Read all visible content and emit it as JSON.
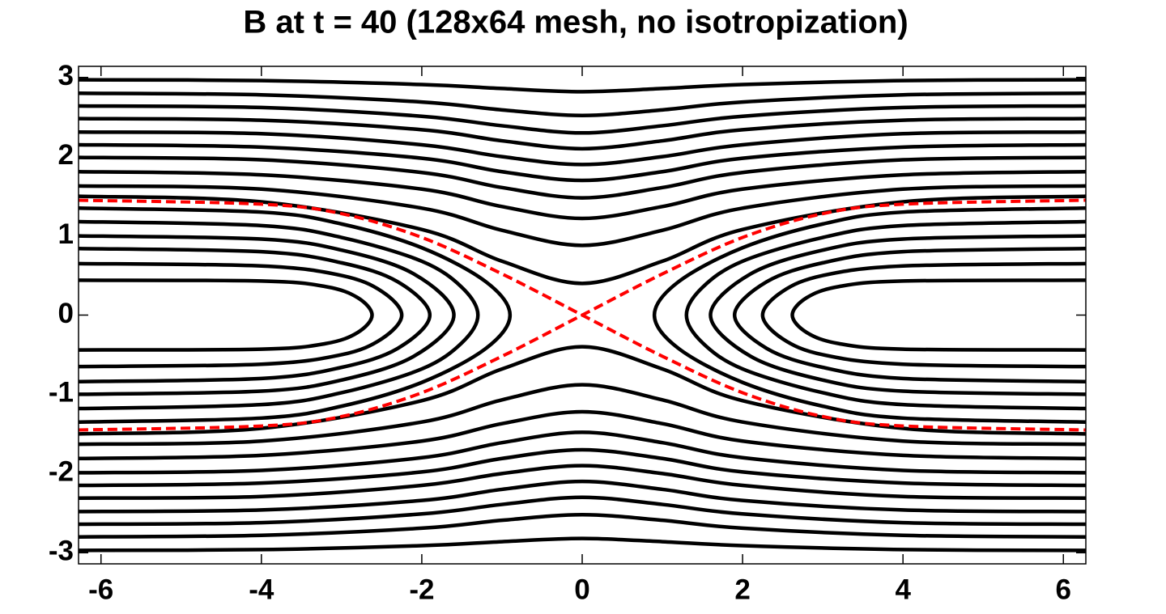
{
  "chart_data": {
    "type": "line",
    "title": "B at t = 40 (128x64 mesh, no isotropization)",
    "xlim": [
      -6.28,
      6.28
    ],
    "ylim": [
      -3.14,
      3.14
    ],
    "xticks": [
      -6,
      -4,
      -2,
      0,
      2,
      4,
      6
    ],
    "yticks": [
      -3,
      -2,
      -1,
      0,
      1,
      2,
      3
    ],
    "series": [
      {
        "color": "#000000",
        "x": [
          -6.28,
          -4,
          -3.2,
          -2.8,
          -2.62,
          -2.8,
          -3.2,
          -4,
          -6.28
        ],
        "values": [
          0.44,
          0.43,
          0.36,
          0.22,
          0,
          -0.22,
          -0.36,
          -0.43,
          -0.44
        ]
      },
      {
        "color": "#000000",
        "x": [
          -6.28,
          -4,
          -3,
          -2.5,
          -2.25,
          -2.5,
          -3,
          -4,
          -6.28
        ],
        "values": [
          0.65,
          0.62,
          0.5,
          0.3,
          0,
          -0.3,
          -0.5,
          -0.62,
          -0.65
        ]
      },
      {
        "color": "#000000",
        "x": [
          -6.28,
          -4,
          -3,
          -2.3,
          -1.9,
          -2.3,
          -3,
          -4,
          -6.28
        ],
        "values": [
          0.84,
          0.8,
          0.66,
          0.42,
          0,
          -0.42,
          -0.66,
          -0.8,
          -0.84
        ]
      },
      {
        "color": "#000000",
        "x": [
          -6.28,
          -4,
          -3,
          -2.1,
          -1.6,
          -2.1,
          -3,
          -4,
          -6.28
        ],
        "values": [
          1.0,
          0.96,
          0.82,
          0.52,
          0,
          -0.52,
          -0.82,
          -0.96,
          -1.0
        ]
      },
      {
        "color": "#000000",
        "x": [
          -6.28,
          -4,
          -3,
          -2,
          -1.5,
          -1.3,
          -1.5,
          -2,
          -3,
          -4,
          -6.28
        ],
        "values": [
          1.18,
          1.13,
          0.98,
          0.68,
          0.35,
          0,
          -0.35,
          -0.68,
          -0.98,
          -1.13,
          -1.18
        ]
      },
      {
        "color": "#000000",
        "x": [
          -6.28,
          -4,
          -3,
          -2,
          -1.2,
          -0.9,
          -1.2,
          -2,
          -3,
          -4,
          -6.28
        ],
        "values": [
          1.35,
          1.3,
          1.15,
          0.85,
          0.42,
          0,
          -0.42,
          -0.85,
          -1.15,
          -1.3,
          -1.35
        ]
      },
      {
        "color": "#000000",
        "x": [
          6.28,
          4,
          3.2,
          2.8,
          2.62,
          2.8,
          3.2,
          4,
          6.28
        ],
        "values": [
          0.44,
          0.43,
          0.36,
          0.22,
          0,
          -0.22,
          -0.36,
          -0.43,
          -0.44
        ]
      },
      {
        "color": "#000000",
        "x": [
          6.28,
          4,
          3,
          2.5,
          2.25,
          2.5,
          3,
          4,
          6.28
        ],
        "values": [
          0.65,
          0.62,
          0.5,
          0.3,
          0,
          -0.3,
          -0.5,
          -0.62,
          -0.65
        ]
      },
      {
        "color": "#000000",
        "x": [
          6.28,
          4,
          3,
          2.3,
          1.9,
          2.3,
          3,
          4,
          6.28
        ],
        "values": [
          0.84,
          0.8,
          0.66,
          0.42,
          0,
          -0.42,
          -0.66,
          -0.8,
          -0.84
        ]
      },
      {
        "color": "#000000",
        "x": [
          6.28,
          4,
          3,
          2.1,
          1.6,
          2.1,
          3,
          4,
          6.28
        ],
        "values": [
          1.0,
          0.96,
          0.82,
          0.52,
          0,
          -0.52,
          -0.82,
          -0.96,
          -1.0
        ]
      },
      {
        "color": "#000000",
        "x": [
          6.28,
          4,
          3,
          2,
          1.5,
          1.3,
          1.5,
          2,
          3,
          4,
          6.28
        ],
        "values": [
          1.18,
          1.13,
          0.98,
          0.68,
          0.35,
          0,
          -0.35,
          -0.68,
          -0.98,
          -1.13,
          -1.18
        ]
      },
      {
        "color": "#000000",
        "x": [
          6.28,
          4,
          3,
          2,
          1.2,
          0.9,
          1.2,
          2,
          3,
          4,
          6.28
        ],
        "values": [
          1.35,
          1.3,
          1.15,
          0.85,
          0.42,
          0,
          -0.42,
          -0.85,
          -1.15,
          -1.3,
          -1.35
        ]
      },
      {
        "color": "#000000",
        "x": [
          -6.28,
          -4,
          -2,
          -1,
          0,
          1,
          2,
          4,
          6.28
        ],
        "values": [
          1.5,
          1.43,
          1.08,
          0.68,
          0.4,
          0.68,
          1.08,
          1.43,
          1.5
        ]
      },
      {
        "color": "#000000",
        "x": [
          -6.28,
          -4,
          -2,
          -1,
          0,
          1,
          2,
          4,
          6.28
        ],
        "values": [
          1.63,
          1.59,
          1.35,
          1.07,
          0.88,
          1.07,
          1.35,
          1.59,
          1.63
        ]
      },
      {
        "color": "#000000",
        "x": [
          -6.28,
          -4,
          -2,
          -1,
          0,
          1,
          2,
          4,
          6.28
        ],
        "values": [
          1.81,
          1.77,
          1.59,
          1.37,
          1.22,
          1.37,
          1.59,
          1.77,
          1.81
        ]
      },
      {
        "color": "#000000",
        "x": [
          -6.28,
          -4,
          -2,
          -1,
          0,
          1,
          2,
          4,
          6.28
        ],
        "values": [
          1.99,
          1.96,
          1.8,
          1.61,
          1.48,
          1.61,
          1.8,
          1.96,
          1.99
        ]
      },
      {
        "color": "#000000",
        "x": [
          -6.28,
          -4,
          -2,
          -1,
          0,
          1,
          2,
          4,
          6.28
        ],
        "values": [
          2.15,
          2.12,
          1.98,
          1.81,
          1.7,
          1.81,
          1.98,
          2.12,
          2.15
        ]
      },
      {
        "color": "#000000",
        "x": [
          -6.28,
          -4,
          -2,
          -1,
          0,
          1,
          2,
          4,
          6.28
        ],
        "values": [
          2.31,
          2.29,
          2.15,
          2.0,
          1.9,
          2.0,
          2.15,
          2.29,
          2.31
        ]
      },
      {
        "color": "#000000",
        "x": [
          -6.28,
          -4,
          -2,
          -1,
          0,
          1,
          2,
          4,
          6.28
        ],
        "values": [
          2.48,
          2.46,
          2.34,
          2.2,
          2.1,
          2.2,
          2.34,
          2.46,
          2.48
        ]
      },
      {
        "color": "#000000",
        "x": [
          -6.28,
          -4,
          -2,
          -1,
          0,
          1,
          2,
          4,
          6.28
        ],
        "values": [
          2.64,
          2.62,
          2.51,
          2.39,
          2.3,
          2.39,
          2.51,
          2.62,
          2.64
        ]
      },
      {
        "color": "#000000",
        "x": [
          -6.28,
          -4,
          -2,
          -1,
          0,
          1,
          2,
          4,
          6.28
        ],
        "values": [
          2.8,
          2.78,
          2.69,
          2.59,
          2.52,
          2.59,
          2.69,
          2.78,
          2.8
        ]
      },
      {
        "color": "#000000",
        "x": [
          -6.28,
          -4,
          -2,
          -1,
          0,
          1,
          2,
          4,
          6.28
        ],
        "values": [
          2.97,
          2.96,
          2.91,
          2.86,
          2.82,
          2.86,
          2.91,
          2.96,
          2.97
        ]
      },
      {
        "color": "#000000",
        "x": [
          -6.28,
          -4,
          -2,
          -1,
          0,
          1,
          2,
          4,
          6.28
        ],
        "values": [
          -1.5,
          -1.43,
          -1.08,
          -0.68,
          -0.4,
          -0.68,
          -1.08,
          -1.43,
          -1.5
        ]
      },
      {
        "color": "#000000",
        "x": [
          -6.28,
          -4,
          -2,
          -1,
          0,
          1,
          2,
          4,
          6.28
        ],
        "values": [
          -1.63,
          -1.59,
          -1.35,
          -1.07,
          -0.88,
          -1.07,
          -1.35,
          -1.59,
          -1.63
        ]
      },
      {
        "color": "#000000",
        "x": [
          -6.28,
          -4,
          -2,
          -1,
          0,
          1,
          2,
          4,
          6.28
        ],
        "values": [
          -1.81,
          -1.77,
          -1.59,
          -1.37,
          -1.22,
          -1.37,
          -1.59,
          -1.77,
          -1.81
        ]
      },
      {
        "color": "#000000",
        "x": [
          -6.28,
          -4,
          -2,
          -1,
          0,
          1,
          2,
          4,
          6.28
        ],
        "values": [
          -1.99,
          -1.96,
          -1.8,
          -1.61,
          -1.48,
          -1.61,
          -1.8,
          -1.96,
          -1.99
        ]
      },
      {
        "color": "#000000",
        "x": [
          -6.28,
          -4,
          -2,
          -1,
          0,
          1,
          2,
          4,
          6.28
        ],
        "values": [
          -2.15,
          -2.12,
          -1.98,
          -1.81,
          -1.7,
          -1.81,
          -1.98,
          -2.12,
          -2.15
        ]
      },
      {
        "color": "#000000",
        "x": [
          -6.28,
          -4,
          -2,
          -1,
          0,
          1,
          2,
          4,
          6.28
        ],
        "values": [
          -2.31,
          -2.29,
          -2.15,
          -2.0,
          -1.9,
          -2.0,
          -2.15,
          -2.29,
          -2.31
        ]
      },
      {
        "color": "#000000",
        "x": [
          -6.28,
          -4,
          -2,
          -1,
          0,
          1,
          2,
          4,
          6.28
        ],
        "values": [
          -2.48,
          -2.46,
          -2.34,
          -2.2,
          -2.1,
          -2.2,
          -2.34,
          -2.46,
          -2.48
        ]
      },
      {
        "color": "#000000",
        "x": [
          -6.28,
          -4,
          -2,
          -1,
          0,
          1,
          2,
          4,
          6.28
        ],
        "values": [
          -2.64,
          -2.62,
          -2.51,
          -2.39,
          -2.3,
          -2.39,
          -2.51,
          -2.62,
          -2.64
        ]
      },
      {
        "color": "#000000",
        "x": [
          -6.28,
          -4,
          -2,
          -1,
          0,
          1,
          2,
          4,
          6.28
        ],
        "values": [
          -2.8,
          -2.78,
          -2.69,
          -2.59,
          -2.52,
          -2.59,
          -2.69,
          -2.78,
          -2.8
        ]
      },
      {
        "color": "#000000",
        "x": [
          -6.28,
          -4,
          -2,
          -1,
          0,
          1,
          2,
          4,
          6.28
        ],
        "values": [
          -2.97,
          -2.96,
          -2.91,
          -2.86,
          -2.82,
          -2.86,
          -2.91,
          -2.96,
          -2.97
        ]
      },
      {
        "color": "#ff0000",
        "dashed": true,
        "x": [
          -6.28,
          -4,
          -3,
          -2,
          -1,
          0,
          1,
          2,
          3,
          4,
          6.28
        ],
        "values": [
          1.45,
          1.4,
          1.28,
          0.98,
          0.52,
          0,
          -0.52,
          -0.98,
          -1.28,
          -1.4,
          -1.45
        ]
      },
      {
        "color": "#ff0000",
        "dashed": true,
        "x": [
          -6.28,
          -4,
          -3,
          -2,
          -1,
          0,
          1,
          2,
          3,
          4,
          6.28
        ],
        "values": [
          -1.45,
          -1.4,
          -1.28,
          -0.98,
          -0.52,
          0,
          0.52,
          0.98,
          1.28,
          1.4,
          1.45
        ]
      }
    ]
  }
}
